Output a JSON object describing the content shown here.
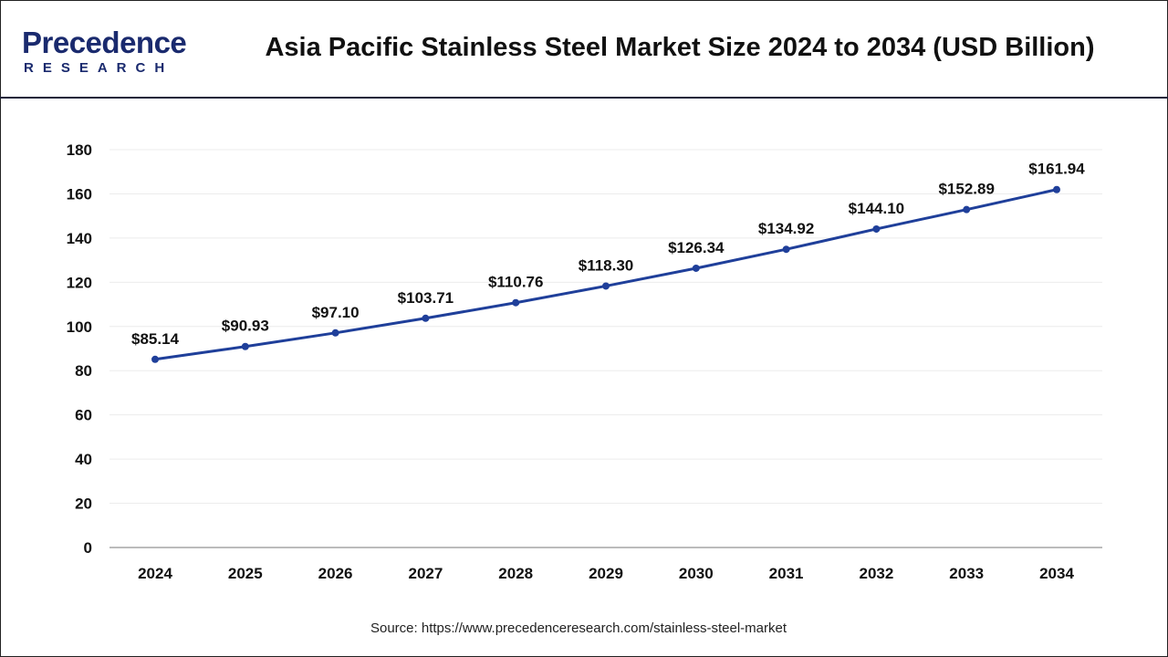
{
  "header": {
    "logo_text": "Precedence",
    "logo_subtext": "RESEARCH",
    "title": "Asia Pacific Stainless Steel Market Size 2024 to 2034 (USD Billion)"
  },
  "source": "Source: https://www.precedenceresearch.com/stainless-steel-market",
  "chart_data": {
    "type": "line",
    "title": "Asia Pacific Stainless Steel Market Size 2024 to 2034 (USD Billion)",
    "xlabel": "",
    "ylabel": "",
    "categories": [
      "2024",
      "2025",
      "2026",
      "2027",
      "2028",
      "2029",
      "2030",
      "2031",
      "2032",
      "2033",
      "2034"
    ],
    "values": [
      85.14,
      90.93,
      97.1,
      103.71,
      110.76,
      118.3,
      126.34,
      134.92,
      144.1,
      152.89,
      161.94
    ],
    "data_labels": [
      "$85.14",
      "$90.93",
      "$97.10",
      "$103.71",
      "$110.76",
      "$118.30",
      "$126.34",
      "$134.92",
      "$144.10",
      "$152.89",
      "$161.94"
    ],
    "ylim": [
      0,
      180
    ],
    "yticks": [
      0,
      20,
      40,
      60,
      80,
      100,
      120,
      140,
      160,
      180
    ],
    "grid": true,
    "legend": "none",
    "line_color": "#1f3f9a"
  }
}
